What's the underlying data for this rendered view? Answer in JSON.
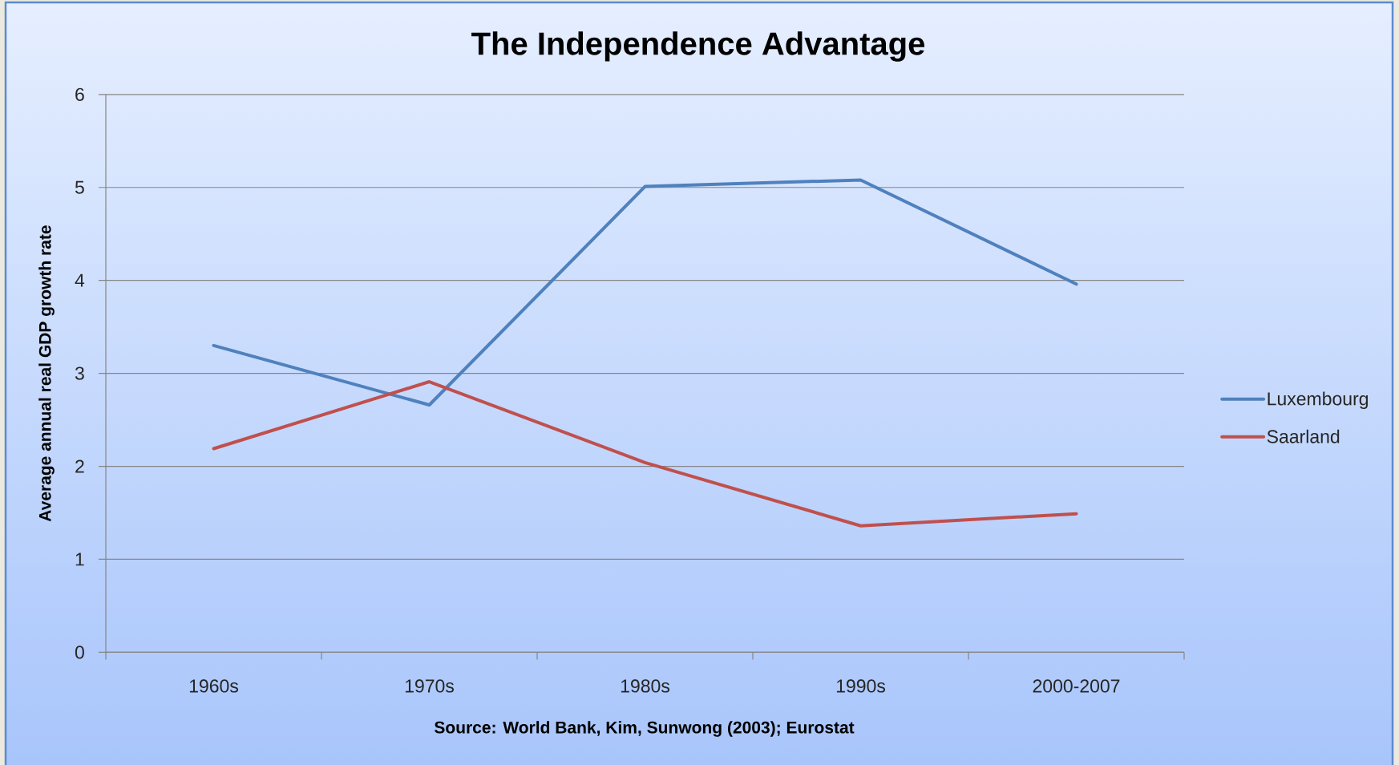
{
  "chart_data": {
    "type": "line",
    "title": "The Independence Advantage",
    "ylabel": "Average annual real GDP growth rate",
    "annotations": [
      "Source: World Bank, Kim, Sunwong (2003); Eurostat"
    ],
    "categories": [
      "1960s",
      "1970s",
      "1980s",
      "1990s",
      "2000-2007"
    ],
    "series": [
      {
        "name": "Luxembourg",
        "color": "#4f81bd",
        "values": [
          3.3,
          2.66,
          5.01,
          5.08,
          3.96
        ]
      },
      {
        "name": "Saarland",
        "color": "#c0504d",
        "values": [
          2.19,
          2.91,
          2.04,
          1.36,
          1.49
        ]
      }
    ],
    "ylim": [
      0,
      6
    ],
    "yticks": [
      0,
      1,
      2,
      3,
      4,
      5,
      6
    ],
    "grid": "y",
    "legend": "right",
    "marker": "none"
  }
}
